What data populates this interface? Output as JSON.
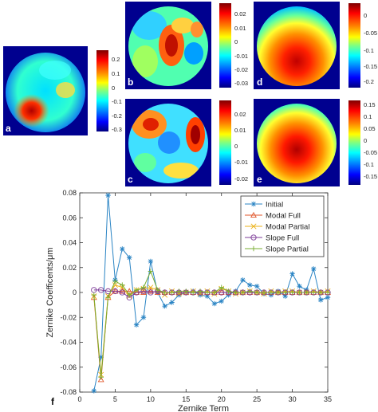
{
  "panels": [
    {
      "id": "a",
      "label": "a",
      "ticks": [
        "0.2",
        "0.1",
        "0",
        "-0.1",
        "-0.2",
        "-0.3"
      ]
    },
    {
      "id": "b",
      "label": "b",
      "ticks": [
        "0.02",
        "0.01",
        "0",
        "-0.01",
        "-0.02",
        "-0.03"
      ]
    },
    {
      "id": "c",
      "label": "c",
      "ticks": [
        "0.02",
        "0.01",
        "0",
        "-0.01",
        "-0.02"
      ]
    },
    {
      "id": "d",
      "label": "d",
      "ticks": [
        "0",
        "-0.05",
        "-0.1",
        "-0.15",
        "-0.2"
      ]
    },
    {
      "id": "e",
      "label": "e",
      "ticks": [
        "0.15",
        "0.1",
        "0.05",
        "0",
        "-0.05",
        "-0.1",
        "-0.15"
      ]
    }
  ],
  "chart_label": "f",
  "chart_data": {
    "type": "line",
    "xlabel": "Zernike Term",
    "ylabel": "Zernike Coefficents/μm",
    "xlim": [
      0,
      35
    ],
    "ylim": [
      -0.08,
      0.08
    ],
    "xticks": [
      0,
      5,
      10,
      15,
      20,
      25,
      30,
      35
    ],
    "yticks": [
      0.08,
      0.06,
      0.04,
      0.02,
      0,
      -0.02,
      -0.04,
      -0.06,
      -0.08
    ],
    "legend_position": "top-right",
    "grid": false,
    "x": [
      2,
      3,
      4,
      5,
      6,
      7,
      8,
      9,
      10,
      11,
      12,
      13,
      14,
      15,
      16,
      17,
      18,
      19,
      20,
      21,
      22,
      23,
      24,
      25,
      26,
      27,
      28,
      29,
      30,
      31,
      32,
      33,
      34,
      35
    ],
    "series": [
      {
        "name": "Initial",
        "color": "#2a84c4",
        "marker": "star",
        "values": [
          -0.079,
          -0.052,
          0.078,
          0.01,
          0.035,
          0.028,
          -0.026,
          -0.02,
          0.025,
          0.0,
          -0.011,
          -0.008,
          -0.002,
          0.0,
          0.001,
          -0.002,
          -0.003,
          -0.009,
          -0.007,
          -0.002,
          0.001,
          0.01,
          0.006,
          0.005,
          -0.001,
          -0.002,
          0.001,
          -0.003,
          0.015,
          0.005,
          0.002,
          0.019,
          -0.006,
          -0.004
        ]
      },
      {
        "name": "Modal Full",
        "color": "#e0562a",
        "marker": "triangle",
        "values": [
          -0.004,
          -0.07,
          -0.004,
          0.001,
          0.001,
          0.001,
          0.0,
          0.0,
          0.001,
          0.0,
          0.0,
          0.0,
          0.0,
          0.0,
          0.0,
          0.0,
          0.0,
          0.0,
          0.0,
          0.0,
          0.0,
          0.0,
          0.0,
          0.0,
          0.0,
          0.0,
          0.0,
          0.0,
          0.0,
          0.0,
          0.0,
          0.0,
          0.0,
          0.0
        ]
      },
      {
        "name": "Modal Partial",
        "color": "#ebb21a",
        "marker": "x",
        "values": [
          -0.003,
          -0.066,
          -0.003,
          0.006,
          0.004,
          -0.003,
          0.002,
          0.003,
          0.004,
          0.002,
          -0.002,
          0.001,
          -0.001,
          0.0,
          0.001,
          -0.001,
          0.001,
          -0.001,
          0.003,
          0.001,
          -0.001,
          0.0,
          0.001,
          0.0,
          -0.001,
          0.001,
          0.0,
          0.001,
          0.001,
          0.0,
          0.0,
          0.001,
          0.0,
          0.001
        ]
      },
      {
        "name": "Slope Full",
        "color": "#7d3c98",
        "marker": "circle",
        "values": [
          0.002,
          0.002,
          0.001,
          0.001,
          0.0,
          -0.004,
          0.0,
          0.001,
          0.0,
          0.001,
          0.0,
          0.0,
          0.0,
          0.0,
          0.0,
          0.0,
          0.0,
          0.0,
          0.0,
          0.0,
          0.0,
          0.0,
          0.0,
          0.0,
          0.0,
          0.0,
          0.0,
          0.0,
          0.0,
          0.0,
          0.0,
          0.0,
          0.0,
          0.0
        ]
      },
      {
        "name": "Slope Partial",
        "color": "#77ac30",
        "marker": "plus",
        "values": [
          -0.002,
          -0.068,
          -0.004,
          0.009,
          0.006,
          -0.002,
          0.002,
          0.004,
          0.017,
          0.002,
          0.0,
          0.0,
          0.001,
          0.001,
          0.0,
          0.001,
          0.0,
          0.0,
          0.004,
          0.001,
          0.0,
          0.0,
          0.001,
          0.0,
          0.0,
          0.0,
          0.0,
          0.0,
          0.0,
          0.0,
          0.0,
          0.0,
          0.0,
          0.0
        ]
      }
    ]
  }
}
